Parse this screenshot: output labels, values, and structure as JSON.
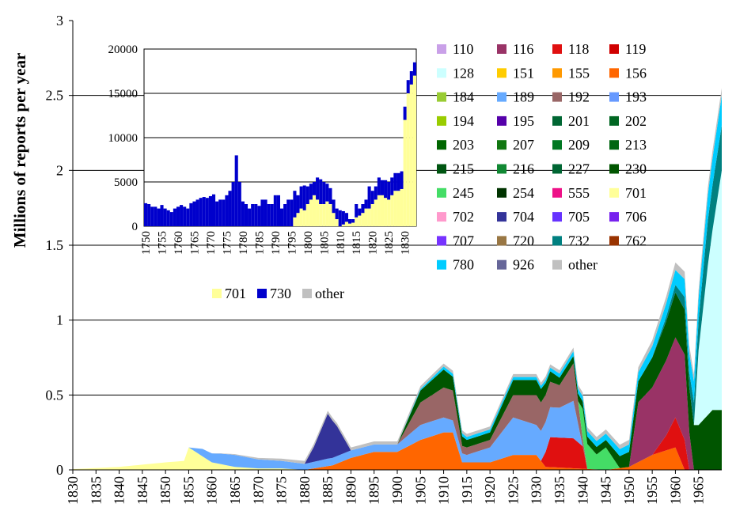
{
  "chart_data": [
    {
      "type": "area",
      "ylabel": "Millions of reports per year",
      "ylim": [
        0,
        3
      ],
      "y_ticks": [
        "0",
        "0.5",
        "1",
        "1.5",
        "2",
        "2.5",
        "3"
      ],
      "x_range": [
        1830,
        1970
      ],
      "x_ticks": [
        "1830",
        "1835",
        "1840",
        "1845",
        "1850",
        "1855",
        "1860",
        "1865",
        "1870",
        "1875",
        "1880",
        "1885",
        "1890",
        "1895",
        "1900",
        "1905",
        "1910",
        "1915",
        "1920",
        "1925",
        "1930",
        "1935",
        "1940",
        "1945",
        "1950",
        "1955",
        "1960",
        "1965"
      ],
      "legend_position": "top-right",
      "legend": [
        {
          "code": "110",
          "color": "#c9a0e8"
        },
        {
          "code": "116",
          "color": "#993366"
        },
        {
          "code": "118",
          "color": "#e01010"
        },
        {
          "code": "119",
          "color": "#d00000"
        },
        {
          "code": "128",
          "color": "#ccffff"
        },
        {
          "code": "151",
          "color": "#ffcc00"
        },
        {
          "code": "155",
          "color": "#ff9900"
        },
        {
          "code": "156",
          "color": "#ff6600"
        },
        {
          "code": "184",
          "color": "#99cc33"
        },
        {
          "code": "189",
          "color": "#66aaff"
        },
        {
          "code": "192",
          "color": "#996666"
        },
        {
          "code": "193",
          "color": "#6699ff"
        },
        {
          "code": "194",
          "color": "#99cc00"
        },
        {
          "code": "195",
          "color": "#5500aa"
        },
        {
          "code": "201",
          "color": "#006633"
        },
        {
          "code": "202",
          "color": "#006622"
        },
        {
          "code": "203",
          "color": "#006600"
        },
        {
          "code": "207",
          "color": "#117711"
        },
        {
          "code": "209",
          "color": "#007722"
        },
        {
          "code": "213",
          "color": "#006611"
        },
        {
          "code": "215",
          "color": "#005511"
        },
        {
          "code": "216",
          "color": "#118833"
        },
        {
          "code": "227",
          "color": "#006633"
        },
        {
          "code": "230",
          "color": "#005500"
        },
        {
          "code": "245",
          "color": "#44dd66"
        },
        {
          "code": "254",
          "color": "#003300"
        },
        {
          "code": "555",
          "color": "#ee1188"
        },
        {
          "code": "701",
          "color": "#ffff99"
        },
        {
          "code": "702",
          "color": "#ff99cc"
        },
        {
          "code": "704",
          "color": "#333399"
        },
        {
          "code": "705",
          "color": "#6633ff"
        },
        {
          "code": "706",
          "color": "#7722ee"
        },
        {
          "code": "707",
          "color": "#7733ff"
        },
        {
          "code": "720",
          "color": "#997744"
        },
        {
          "code": "732",
          "color": "#008080"
        },
        {
          "code": "762",
          "color": "#993300"
        },
        {
          "code": "780",
          "color": "#00ccff"
        },
        {
          "code": "926",
          "color": "#666699"
        },
        {
          "code": "other",
          "color": "#c0c0c0"
        }
      ],
      "series": [
        {
          "name": "701",
          "color": "#ffff99",
          "points": [
            [
              1830,
              0.005
            ],
            [
              1840,
              0.02
            ],
            [
              1850,
              0.05
            ],
            [
              1854,
              0.06
            ],
            [
              1855,
              0.15
            ],
            [
              1860,
              0.05
            ],
            [
              1865,
              0.02
            ],
            [
              1870,
              0.01
            ],
            [
              1875,
              0.01
            ],
            [
              1880,
              0.0
            ]
          ]
        },
        {
          "name": "156",
          "color": "#ff6600",
          "points": [
            [
              1880,
              0.0
            ],
            [
              1886,
              0.03
            ],
            [
              1890,
              0.08
            ],
            [
              1895,
              0.12
            ],
            [
              1900,
              0.12
            ],
            [
              1905,
              0.2
            ],
            [
              1910,
              0.25
            ],
            [
              1912,
              0.25
            ],
            [
              1914,
              0.05
            ],
            [
              1920,
              0.05
            ],
            [
              1925,
              0.1
            ],
            [
              1930,
              0.1
            ],
            [
              1932,
              0.02
            ],
            [
              1945,
              0.0
            ],
            [
              1950,
              0.02
            ],
            [
              1955,
              0.1
            ],
            [
              1960,
              0.15
            ],
            [
              1962,
              0.0
            ]
          ]
        },
        {
          "name": "118",
          "color": "#e01010",
          "points": [
            [
              1931,
              0.0
            ],
            [
              1933,
              0.2
            ],
            [
              1936,
              0.2
            ],
            [
              1938,
              0.2
            ],
            [
              1940,
              0.15
            ],
            [
              1941,
              0.0
            ],
            [
              1955,
              0.0
            ],
            [
              1958,
              0.1
            ],
            [
              1960,
              0.2
            ],
            [
              1962,
              0.2
            ],
            [
              1963,
              0.0
            ]
          ]
        },
        {
          "name": "116",
          "color": "#993366",
          "points": [
            [
              1945,
              0.0
            ],
            [
              1950,
              0.0
            ],
            [
              1952,
              0.4
            ],
            [
              1955,
              0.45
            ],
            [
              1958,
              0.5
            ],
            [
              1962,
              0.57
            ],
            [
              1963,
              0.25
            ],
            [
              1964,
              0.0
            ]
          ]
        },
        {
          "name": "189",
          "color": "#66aaff",
          "points": [
            [
              1855,
              0.0
            ],
            [
              1858,
              0.05
            ],
            [
              1862,
              0.07
            ],
            [
              1865,
              0.08
            ],
            [
              1870,
              0.06
            ],
            [
              1875,
              0.05
            ],
            [
              1880,
              0.04
            ],
            [
              1885,
              0.05
            ],
            [
              1890,
              0.05
            ],
            [
              1895,
              0.05
            ],
            [
              1900,
              0.05
            ],
            [
              1905,
              0.1
            ],
            [
              1910,
              0.1
            ],
            [
              1915,
              0.05
            ],
            [
              1920,
              0.1
            ],
            [
              1925,
              0.25
            ],
            [
              1930,
              0.2
            ],
            [
              1935,
              0.2
            ],
            [
              1938,
              0.25
            ],
            [
              1940,
              0.0
            ]
          ]
        },
        {
          "name": "192",
          "color": "#996666",
          "points": [
            [
              1900,
              0.0
            ],
            [
              1905,
              0.15
            ],
            [
              1910,
              0.2
            ],
            [
              1912,
              0.2
            ],
            [
              1914,
              0.05
            ],
            [
              1920,
              0.05
            ],
            [
              1925,
              0.15
            ],
            [
              1930,
              0.2
            ],
            [
              1935,
              0.15
            ],
            [
              1938,
              0.25
            ],
            [
              1940,
              0.05
            ]
          ]
        },
        {
          "name": "704",
          "color": "#333399",
          "points": [
            [
              1880,
              0.0
            ],
            [
              1882,
              0.1
            ],
            [
              1885,
              0.3
            ],
            [
              1887,
              0.2
            ],
            [
              1890,
              0.0
            ]
          ]
        },
        {
          "name": "245",
          "color": "#44dd66",
          "points": [
            [
              1939,
              0.0
            ],
            [
              1940,
              0.2
            ],
            [
              1943,
              0.1
            ],
            [
              1945,
              0.15
            ],
            [
              1948,
              0.0
            ]
          ]
        },
        {
          "name": "230",
          "color": "#005500",
          "points": [
            [
              1900,
              0.0
            ],
            [
              1905,
              0.08
            ],
            [
              1910,
              0.12
            ],
            [
              1915,
              0.05
            ],
            [
              1920,
              0.05
            ],
            [
              1925,
              0.1
            ],
            [
              1930,
              0.1
            ],
            [
              1935,
              0.05
            ],
            [
              1940,
              0.05
            ],
            [
              1945,
              0.05
            ],
            [
              1950,
              0.1
            ],
            [
              1955,
              0.2
            ],
            [
              1960,
              0.3
            ],
            [
              1965,
              0.3
            ],
            [
              1968,
              0.4
            ],
            [
              1970,
              0.4
            ]
          ]
        },
        {
          "name": "128",
          "color": "#ccffff",
          "points": [
            [
              1964,
              0.0
            ],
            [
              1965,
              0.5
            ],
            [
              1967,
              1.0
            ],
            [
              1968,
              1.2
            ],
            [
              1969,
              1.4
            ],
            [
              1970,
              1.6
            ]
          ]
        },
        {
          "name": "732",
          "color": "#008080",
          "points": [
            [
              1955,
              0.0
            ],
            [
              1960,
              0.05
            ],
            [
              1963,
              0.1
            ],
            [
              1965,
              0.2
            ],
            [
              1967,
              0.3
            ],
            [
              1970,
              0.3
            ]
          ]
        },
        {
          "name": "780",
          "color": "#00ccff",
          "points": [
            [
              1900,
              0.0
            ],
            [
              1910,
              0.02
            ],
            [
              1930,
              0.02
            ],
            [
              1950,
              0.05
            ],
            [
              1960,
              0.1
            ],
            [
              1965,
              0.15
            ],
            [
              1970,
              0.2
            ]
          ]
        },
        {
          "name": "other",
          "color": "#c0c0c0",
          "points": [
            [
              1860,
              0.0
            ],
            [
              1880,
              0.02
            ],
            [
              1910,
              0.02
            ],
            [
              1930,
              0.02
            ],
            [
              1950,
              0.03
            ],
            [
              1960,
              0.05
            ],
            [
              1970,
              0.05
            ]
          ]
        }
      ]
    },
    {
      "type": "bar",
      "ylim": [
        0,
        20000
      ],
      "y_ticks": [
        "0",
        "5000",
        "10000",
        "15000",
        "20000"
      ],
      "x_range": [
        1750,
        1834
      ],
      "x_ticks": [
        "1750",
        "1755",
        "1760",
        "1765",
        "1770",
        "1775",
        "1780",
        "1785",
        "1790",
        "1795",
        "1800",
        "1805",
        "1810",
        "1815",
        "1820",
        "1825",
        "1830"
      ],
      "legend": [
        {
          "name": "701",
          "color": "#ffff99"
        },
        {
          "name": "730",
          "color": "#0000cc"
        },
        {
          "name": "other",
          "color": "#c0c0c0"
        }
      ],
      "x": [
        1750,
        1751,
        1752,
        1753,
        1754,
        1755,
        1756,
        1757,
        1758,
        1759,
        1760,
        1761,
        1762,
        1763,
        1764,
        1765,
        1766,
        1767,
        1768,
        1769,
        1770,
        1771,
        1772,
        1773,
        1774,
        1775,
        1776,
        1777,
        1778,
        1779,
        1780,
        1781,
        1782,
        1783,
        1784,
        1785,
        1786,
        1787,
        1788,
        1789,
        1790,
        1791,
        1792,
        1793,
        1794,
        1795,
        1796,
        1797,
        1798,
        1799,
        1800,
        1801,
        1802,
        1803,
        1804,
        1805,
        1806,
        1807,
        1808,
        1809,
        1810,
        1811,
        1812,
        1813,
        1814,
        1815,
        1816,
        1817,
        1818,
        1819,
        1820,
        1821,
        1822,
        1823,
        1824,
        1825,
        1826,
        1827,
        1828,
        1829,
        1830,
        1831,
        1832,
        1833
      ],
      "series": [
        {
          "name": "701",
          "values": [
            0,
            0,
            0,
            0,
            0,
            0,
            0,
            0,
            0,
            0,
            0,
            0,
            0,
            0,
            0,
            0,
            0,
            0,
            0,
            0,
            0,
            0,
            0,
            0,
            0,
            0,
            0,
            0,
            0,
            0,
            0,
            0,
            0,
            0,
            0,
            0,
            0,
            0,
            0,
            0,
            0,
            0,
            0,
            0,
            0,
            0,
            1000,
            1500,
            2000,
            1800,
            2500,
            3000,
            3500,
            3000,
            2500,
            2500,
            2800,
            2500,
            1500,
            800,
            0,
            200,
            500,
            300,
            400,
            1000,
            1200,
            1500,
            2000,
            2000,
            2500,
            3000,
            3500,
            3500,
            3200,
            3000,
            3500,
            4000,
            4000,
            4200,
            12000,
            15000,
            16000,
            17000
          ]
        },
        {
          "name": "730",
          "values": [
            2600,
            2500,
            2200,
            2200,
            2000,
            2400,
            2000,
            1800,
            1600,
            2000,
            2200,
            2400,
            2200,
            2000,
            2600,
            2800,
            3000,
            3200,
            3300,
            3200,
            3400,
            3600,
            2800,
            3000,
            3000,
            3500,
            4000,
            5000,
            8000,
            5000,
            2800,
            2500,
            2000,
            2500,
            2500,
            2300,
            3000,
            3000,
            2500,
            2500,
            3500,
            3500,
            2000,
            2500,
            3000,
            3000,
            3000,
            2000,
            2500,
            2800,
            2000,
            1800,
            1500,
            2500,
            2800,
            2500,
            2000,
            1800,
            1500,
            1200,
            1800,
            1500,
            1000,
            500,
            400,
            1500,
            800,
            1000,
            1000,
            2500,
            1500,
            1500,
            2000,
            1700,
            2000,
            2000,
            2000,
            2000,
            2000,
            2000,
            1500,
            1500,
            1500,
            1500
          ]
        }
      ]
    }
  ]
}
